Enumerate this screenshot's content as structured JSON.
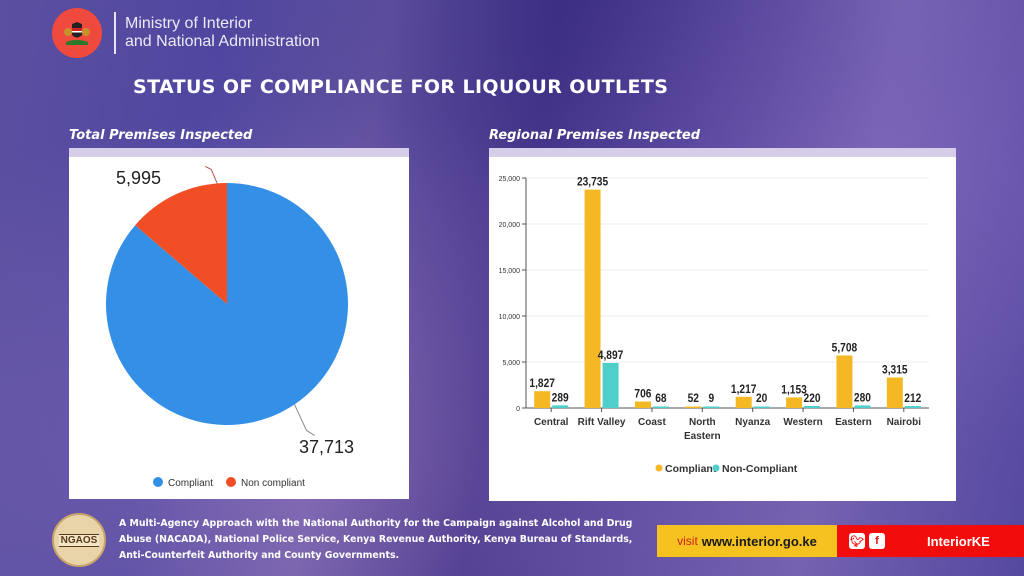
{
  "header": {
    "ministry_line1": "Ministry of Interior",
    "ministry_line2": "and National Administration",
    "title": "STATUS OF COMPLIANCE FOR LIQUOUR OUTLETS"
  },
  "panels": {
    "left_title": "Total Premises Inspected",
    "right_title": "Regional Premises Inspected"
  },
  "footer": {
    "text": "A Multi-Agency Approach with the National Authority for the Campaign against Alcohol and Drug Abuse (NACADA), National Police Service, Kenya Revenue Authority, Kenya Bureau of Standards, Anti-Counterfeit Authority and County Governments.",
    "badge": "NGAOS",
    "visit_prefix": "visit",
    "website": "www.interior.go.ke",
    "handle": "InteriorKE",
    "icons": [
      "twitter-icon",
      "facebook-icon"
    ]
  },
  "colors": {
    "compliant_pie": "#3390e6",
    "noncompliant_pie": "#f24e25",
    "compliant_bar": "#f4b824",
    "noncompliant_bar": "#4ecfc9",
    "visit_bg": "#f5c220",
    "social_bg": "#f20c0c",
    "seal_bg": "#f04a3e"
  },
  "chart_data": [
    {
      "type": "pie",
      "title": "Total Premises Inspected",
      "labels": [
        "Compliant",
        "Non compliant"
      ],
      "values": [
        37713,
        5995
      ],
      "value_labels": [
        "37,713",
        "5,995"
      ],
      "legend": [
        "Compliant",
        "Non compliant"
      ],
      "legend_position": "bottom"
    },
    {
      "type": "bar",
      "title": "Regional Premises Inspected",
      "categories": [
        "Central",
        "Rift Valley",
        "Coast",
        "North Eastern",
        "Nyanza",
        "Western",
        "Eastern",
        "Nairobi"
      ],
      "category_lines": [
        [
          "Central"
        ],
        [
          "Rift Valley"
        ],
        [
          "Coast"
        ],
        [
          "North",
          "Eastern"
        ],
        [
          "Nyanza"
        ],
        [
          "Western"
        ],
        [
          "Eastern"
        ],
        [
          "Nairobi"
        ]
      ],
      "series": [
        {
          "name": "Compliant",
          "values": [
            1827,
            23735,
            706,
            52,
            1217,
            1153,
            5708,
            3315
          ],
          "labels": [
            "1,827",
            "23,735",
            "706",
            "52",
            "1,217",
            "1,153",
            "5,708",
            "3,315"
          ]
        },
        {
          "name": "Non-Compliant",
          "values": [
            289,
            4897,
            68,
            9,
            20,
            220,
            280,
            212
          ],
          "labels": [
            "289",
            "4,897",
            "68",
            "9",
            "20",
            "220",
            "280",
            "212"
          ]
        }
      ],
      "ylim": [
        0,
        25000
      ],
      "yticks": [
        0,
        5000,
        10000,
        15000,
        20000,
        25000
      ],
      "ytick_labels": [
        "0",
        "5,000",
        "10,000",
        "15,000",
        "20,000",
        "25,000"
      ],
      "grid": true,
      "legend_position": "bottom"
    }
  ]
}
